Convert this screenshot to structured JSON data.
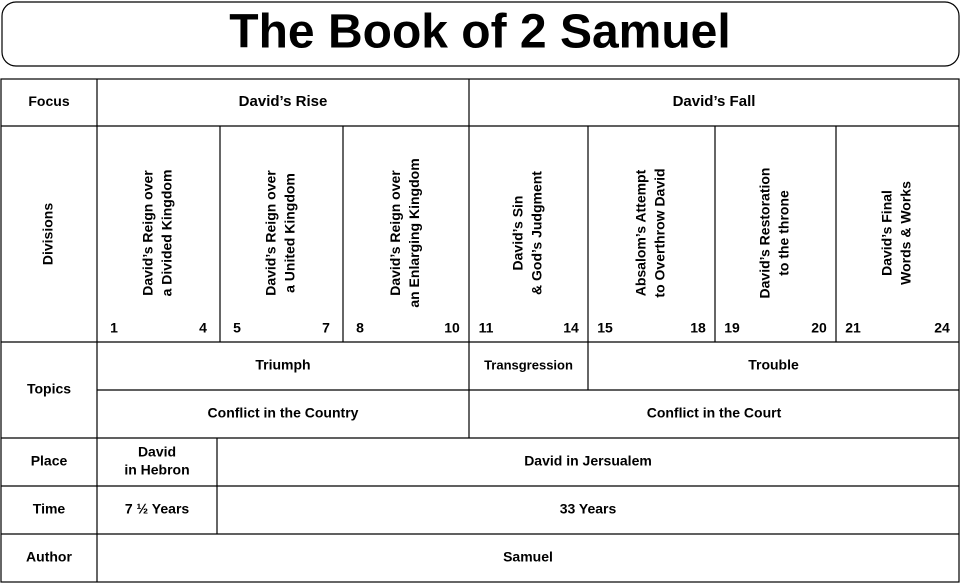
{
  "title": "The Book of 2 Samuel",
  "row_labels": [
    "Focus",
    "Divisions",
    "Topics",
    "Place",
    "Time",
    "Author"
  ],
  "focus": [
    "David’s Rise",
    "David’s Fall"
  ],
  "divisions": [
    {
      "lines": [
        "David’s Reign over",
        "a Divided Kingdom"
      ],
      "start": 1,
      "end": 4
    },
    {
      "lines": [
        "David’s Reign over",
        "a United Kingdom"
      ],
      "start": 5,
      "end": 7
    },
    {
      "lines": [
        "David’s Reign over",
        "an Enlarging Kingdom"
      ],
      "start": 8,
      "end": 10
    },
    {
      "lines": [
        "David’s Sin",
        "& God’s Judgment"
      ],
      "start": 11,
      "end": 14
    },
    {
      "lines": [
        "Absalom’s Attempt",
        "to Overthrow David"
      ],
      "start": 15,
      "end": 18
    },
    {
      "lines": [
        "David’s Restoration",
        "to the throne"
      ],
      "start": 19,
      "end": 20
    },
    {
      "lines": [
        "David’s Final",
        "Words & Works"
      ],
      "start": 21,
      "end": 24
    }
  ],
  "topics": [
    "Triumph",
    "Transgression",
    "Trouble"
  ],
  "settings": [
    "Conflict in the Country",
    "Conflict in the Court"
  ],
  "place": [
    [
      "David",
      "in Hebron"
    ],
    [
      "David in Jersualem"
    ]
  ],
  "time": [
    "7 ½ Years",
    "33 Years"
  ],
  "author": "Samuel"
}
